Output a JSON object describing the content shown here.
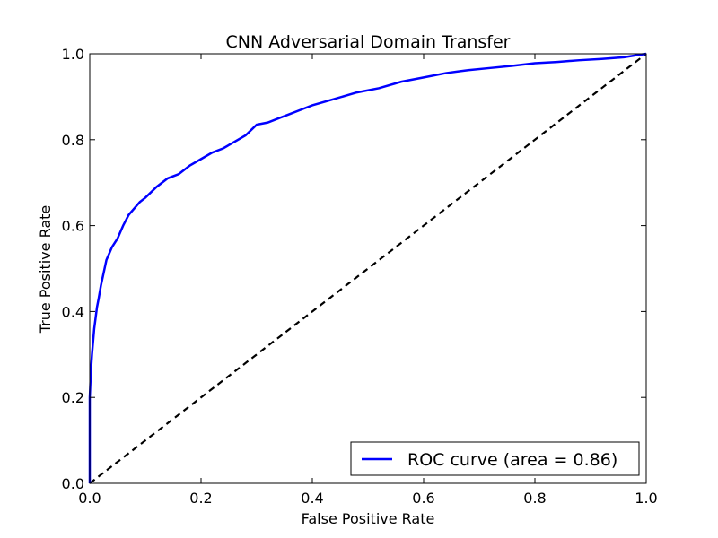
{
  "chart_data": {
    "type": "line",
    "title": "CNN Adversarial Domain Transfer",
    "xlabel": "False Positive Rate",
    "ylabel": "True Positive Rate",
    "xlim": [
      0.0,
      1.0
    ],
    "ylim": [
      0.0,
      1.0
    ],
    "x_ticks": [
      "0.0",
      "0.2",
      "0.4",
      "0.6",
      "0.8",
      "1.0"
    ],
    "y_ticks": [
      "0.0",
      "0.2",
      "0.4",
      "0.6",
      "0.8",
      "1.0"
    ],
    "grid": false,
    "legend_position": "lower-right",
    "series": [
      {
        "name": "ROC curve (area = 0.86)",
        "color": "#0000ff",
        "style": "solid",
        "x": [
          0.0,
          0.0,
          0.002,
          0.004,
          0.006,
          0.008,
          0.01,
          0.013,
          0.016,
          0.02,
          0.025,
          0.03,
          0.035,
          0.04,
          0.05,
          0.06,
          0.07,
          0.08,
          0.09,
          0.1,
          0.12,
          0.14,
          0.16,
          0.18,
          0.2,
          0.22,
          0.24,
          0.26,
          0.28,
          0.3,
          0.32,
          0.34,
          0.36,
          0.38,
          0.4,
          0.44,
          0.48,
          0.52,
          0.56,
          0.6,
          0.64,
          0.68,
          0.72,
          0.76,
          0.8,
          0.84,
          0.88,
          0.92,
          0.96,
          0.98,
          1.0
        ],
        "y": [
          0.0,
          0.2,
          0.26,
          0.3,
          0.33,
          0.36,
          0.38,
          0.41,
          0.43,
          0.46,
          0.49,
          0.52,
          0.535,
          0.55,
          0.57,
          0.6,
          0.625,
          0.64,
          0.655,
          0.665,
          0.69,
          0.71,
          0.72,
          0.74,
          0.755,
          0.77,
          0.78,
          0.795,
          0.81,
          0.835,
          0.84,
          0.85,
          0.86,
          0.87,
          0.88,
          0.895,
          0.91,
          0.92,
          0.935,
          0.945,
          0.955,
          0.962,
          0.967,
          0.972,
          0.978,
          0.981,
          0.985,
          0.988,
          0.992,
          0.996,
          1.0
        ]
      },
      {
        "name": "",
        "color": "#000000",
        "style": "dashed",
        "x": [
          0.0,
          1.0
        ],
        "y": [
          0.0,
          1.0
        ]
      }
    ]
  }
}
